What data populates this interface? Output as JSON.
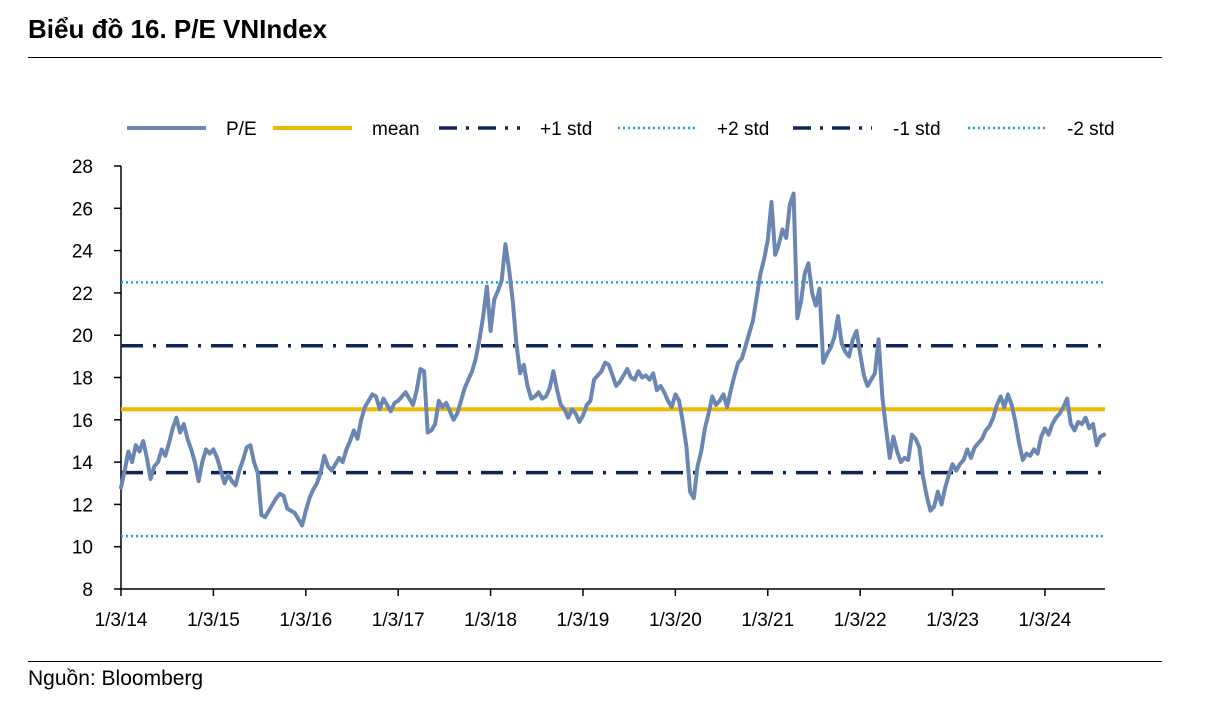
{
  "header": {
    "title": "Biểu đồ 16. P/E VNIndex"
  },
  "footer": {
    "source": "Nguồn: Bloomberg"
  },
  "chart_data": {
    "type": "line",
    "title": "Biểu đồ 16. P/E VNIndex",
    "xlabel": "",
    "ylabel": "",
    "ylim": [
      8,
      28
    ],
    "y_ticks": [
      8,
      10,
      12,
      14,
      16,
      18,
      20,
      22,
      24,
      26,
      28
    ],
    "x_ticks": [
      {
        "label": "1/3/14",
        "t": 0
      },
      {
        "label": "1/3/15",
        "t": 1
      },
      {
        "label": "1/3/16",
        "t": 2
      },
      {
        "label": "1/3/17",
        "t": 3
      },
      {
        "label": "1/3/18",
        "t": 4
      },
      {
        "label": "1/3/19",
        "t": 5
      },
      {
        "label": "1/3/20",
        "t": 6
      },
      {
        "label": "1/3/21",
        "t": 7
      },
      {
        "label": "1/3/22",
        "t": 8
      },
      {
        "label": "1/3/23",
        "t": 9
      },
      {
        "label": "1/3/24",
        "t": 10
      }
    ],
    "x_range": [
      0,
      10.65
    ],
    "legend_position": "top",
    "reference_lines": [
      {
        "name": "mean",
        "value": 16.5,
        "style": "solid",
        "color": "#F5B800"
      },
      {
        "name": "+1 std",
        "value": 19.5,
        "style": "dashdot",
        "color": "#0F2557"
      },
      {
        "name": "+2 std",
        "value": 22.5,
        "style": "dotted",
        "color": "#1BA1E2"
      },
      {
        "name": "-1 std",
        "value": 13.5,
        "style": "dashdot",
        "color": "#0F2557"
      },
      {
        "name": "-2 std",
        "value": 10.5,
        "style": "dotted",
        "color": "#1BA1E2"
      }
    ],
    "series": [
      {
        "name": "P/E",
        "color": "#6A86B2",
        "points": [
          [
            0.0,
            12.8
          ],
          [
            0.04,
            13.6
          ],
          [
            0.08,
            14.5
          ],
          [
            0.12,
            14.0
          ],
          [
            0.16,
            14.8
          ],
          [
            0.2,
            14.5
          ],
          [
            0.24,
            15.0
          ],
          [
            0.28,
            14.2
          ],
          [
            0.32,
            13.2
          ],
          [
            0.36,
            13.8
          ],
          [
            0.4,
            14.0
          ],
          [
            0.44,
            14.6
          ],
          [
            0.48,
            14.3
          ],
          [
            0.52,
            14.9
          ],
          [
            0.56,
            15.6
          ],
          [
            0.6,
            16.1
          ],
          [
            0.64,
            15.4
          ],
          [
            0.68,
            15.8
          ],
          [
            0.72,
            15.1
          ],
          [
            0.76,
            14.6
          ],
          [
            0.8,
            14.0
          ],
          [
            0.84,
            13.1
          ],
          [
            0.88,
            14.0
          ],
          [
            0.92,
            14.6
          ],
          [
            0.96,
            14.4
          ],
          [
            1.0,
            14.6
          ],
          [
            1.04,
            14.2
          ],
          [
            1.08,
            13.6
          ],
          [
            1.12,
            13.0
          ],
          [
            1.16,
            13.4
          ],
          [
            1.2,
            13.1
          ],
          [
            1.24,
            12.9
          ],
          [
            1.28,
            13.6
          ],
          [
            1.32,
            14.1
          ],
          [
            1.36,
            14.7
          ],
          [
            1.4,
            14.8
          ],
          [
            1.44,
            14.0
          ],
          [
            1.48,
            13.5
          ],
          [
            1.52,
            11.5
          ],
          [
            1.56,
            11.4
          ],
          [
            1.6,
            11.7
          ],
          [
            1.64,
            12.0
          ],
          [
            1.68,
            12.3
          ],
          [
            1.72,
            12.5
          ],
          [
            1.76,
            12.4
          ],
          [
            1.8,
            11.8
          ],
          [
            1.84,
            11.7
          ],
          [
            1.88,
            11.6
          ],
          [
            1.92,
            11.3
          ],
          [
            1.96,
            11.0
          ],
          [
            2.0,
            11.7
          ],
          [
            2.04,
            12.3
          ],
          [
            2.08,
            12.7
          ],
          [
            2.12,
            13.0
          ],
          [
            2.16,
            13.5
          ],
          [
            2.2,
            14.3
          ],
          [
            2.24,
            13.8
          ],
          [
            2.28,
            13.6
          ],
          [
            2.32,
            13.9
          ],
          [
            2.36,
            14.2
          ],
          [
            2.4,
            14.0
          ],
          [
            2.44,
            14.6
          ],
          [
            2.48,
            15.0
          ],
          [
            2.52,
            15.5
          ],
          [
            2.56,
            15.1
          ],
          [
            2.6,
            16.0
          ],
          [
            2.64,
            16.6
          ],
          [
            2.68,
            16.9
          ],
          [
            2.72,
            17.2
          ],
          [
            2.76,
            17.1
          ],
          [
            2.8,
            16.5
          ],
          [
            2.84,
            17.0
          ],
          [
            2.88,
            16.7
          ],
          [
            2.92,
            16.4
          ],
          [
            2.96,
            16.8
          ],
          [
            3.0,
            16.9
          ],
          [
            3.04,
            17.1
          ],
          [
            3.08,
            17.3
          ],
          [
            3.12,
            17.0
          ],
          [
            3.16,
            16.7
          ],
          [
            3.2,
            17.4
          ],
          [
            3.24,
            18.4
          ],
          [
            3.28,
            18.3
          ],
          [
            3.32,
            15.4
          ],
          [
            3.36,
            15.5
          ],
          [
            3.4,
            15.8
          ],
          [
            3.44,
            16.9
          ],
          [
            3.48,
            16.6
          ],
          [
            3.52,
            16.8
          ],
          [
            3.56,
            16.4
          ],
          [
            3.6,
            16.0
          ],
          [
            3.64,
            16.3
          ],
          [
            3.68,
            16.9
          ],
          [
            3.72,
            17.5
          ],
          [
            3.76,
            17.9
          ],
          [
            3.8,
            18.3
          ],
          [
            3.84,
            18.9
          ],
          [
            3.88,
            19.8
          ],
          [
            3.92,
            20.9
          ],
          [
            3.96,
            22.3
          ],
          [
            4.0,
            20.2
          ],
          [
            4.04,
            21.7
          ],
          [
            4.08,
            22.1
          ],
          [
            4.12,
            22.6
          ],
          [
            4.16,
            24.3
          ],
          [
            4.2,
            23.1
          ],
          [
            4.24,
            21.6
          ],
          [
            4.28,
            19.6
          ],
          [
            4.32,
            18.2
          ],
          [
            4.36,
            18.6
          ],
          [
            4.4,
            17.6
          ],
          [
            4.44,
            17.0
          ],
          [
            4.48,
            17.1
          ],
          [
            4.52,
            17.3
          ],
          [
            4.56,
            17.0
          ],
          [
            4.6,
            17.1
          ],
          [
            4.64,
            17.5
          ],
          [
            4.68,
            18.3
          ],
          [
            4.72,
            17.4
          ],
          [
            4.76,
            16.7
          ],
          [
            4.8,
            16.5
          ],
          [
            4.84,
            16.1
          ],
          [
            4.88,
            16.5
          ],
          [
            4.92,
            16.3
          ],
          [
            4.96,
            15.9
          ],
          [
            5.0,
            16.2
          ],
          [
            5.04,
            16.7
          ],
          [
            5.08,
            16.9
          ],
          [
            5.12,
            17.9
          ],
          [
            5.16,
            18.1
          ],
          [
            5.2,
            18.3
          ],
          [
            5.24,
            18.7
          ],
          [
            5.28,
            18.6
          ],
          [
            5.32,
            18.1
          ],
          [
            5.36,
            17.6
          ],
          [
            5.4,
            17.8
          ],
          [
            5.44,
            18.1
          ],
          [
            5.48,
            18.4
          ],
          [
            5.52,
            18.0
          ],
          [
            5.56,
            17.9
          ],
          [
            5.6,
            18.3
          ],
          [
            5.64,
            18.0
          ],
          [
            5.68,
            18.1
          ],
          [
            5.72,
            17.9
          ],
          [
            5.76,
            18.2
          ],
          [
            5.8,
            17.4
          ],
          [
            5.84,
            17.6
          ],
          [
            5.88,
            17.3
          ],
          [
            5.92,
            16.9
          ],
          [
            5.96,
            16.6
          ],
          [
            6.0,
            17.2
          ],
          [
            6.04,
            16.9
          ],
          [
            6.08,
            15.9
          ],
          [
            6.12,
            14.7
          ],
          [
            6.16,
            12.6
          ],
          [
            6.2,
            12.3
          ],
          [
            6.24,
            13.8
          ],
          [
            6.28,
            14.5
          ],
          [
            6.32,
            15.6
          ],
          [
            6.36,
            16.3
          ],
          [
            6.4,
            17.1
          ],
          [
            6.44,
            16.7
          ],
          [
            6.48,
            16.9
          ],
          [
            6.52,
            17.2
          ],
          [
            6.56,
            16.6
          ],
          [
            6.6,
            17.4
          ],
          [
            6.64,
            18.1
          ],
          [
            6.68,
            18.7
          ],
          [
            6.72,
            18.9
          ],
          [
            6.76,
            19.5
          ],
          [
            6.8,
            20.1
          ],
          [
            6.84,
            20.7
          ],
          [
            6.88,
            21.8
          ],
          [
            6.92,
            22.9
          ],
          [
            6.96,
            23.6
          ],
          [
            7.0,
            24.5
          ],
          [
            7.04,
            26.3
          ],
          [
            7.08,
            23.8
          ],
          [
            7.12,
            24.3
          ],
          [
            7.16,
            25.0
          ],
          [
            7.2,
            24.6
          ],
          [
            7.24,
            26.2
          ],
          [
            7.28,
            26.7
          ],
          [
            7.32,
            20.8
          ],
          [
            7.36,
            21.6
          ],
          [
            7.4,
            22.9
          ],
          [
            7.44,
            23.4
          ],
          [
            7.48,
            22.0
          ],
          [
            7.52,
            21.4
          ],
          [
            7.56,
            22.2
          ],
          [
            7.6,
            18.7
          ],
          [
            7.64,
            19.1
          ],
          [
            7.68,
            19.4
          ],
          [
            7.72,
            19.9
          ],
          [
            7.76,
            20.9
          ],
          [
            7.8,
            19.6
          ],
          [
            7.84,
            19.2
          ],
          [
            7.88,
            19.0
          ],
          [
            7.92,
            19.8
          ],
          [
            7.96,
            20.2
          ],
          [
            8.0,
            19.1
          ],
          [
            8.04,
            18.1
          ],
          [
            8.08,
            17.6
          ],
          [
            8.12,
            17.9
          ],
          [
            8.16,
            18.2
          ],
          [
            8.2,
            19.8
          ],
          [
            8.24,
            17.1
          ],
          [
            8.28,
            15.6
          ],
          [
            8.32,
            14.2
          ],
          [
            8.36,
            15.2
          ],
          [
            8.4,
            14.5
          ],
          [
            8.44,
            14.0
          ],
          [
            8.48,
            14.2
          ],
          [
            8.52,
            14.1
          ],
          [
            8.56,
            15.3
          ],
          [
            8.6,
            15.1
          ],
          [
            8.64,
            14.7
          ],
          [
            8.68,
            13.3
          ],
          [
            8.72,
            12.4
          ],
          [
            8.76,
            11.7
          ],
          [
            8.8,
            11.9
          ],
          [
            8.84,
            12.6
          ],
          [
            8.88,
            12.0
          ],
          [
            8.92,
            12.8
          ],
          [
            8.96,
            13.4
          ],
          [
            9.0,
            13.9
          ],
          [
            9.04,
            13.6
          ],
          [
            9.08,
            13.9
          ],
          [
            9.12,
            14.1
          ],
          [
            9.16,
            14.6
          ],
          [
            9.2,
            14.2
          ],
          [
            9.24,
            14.7
          ],
          [
            9.28,
            14.9
          ],
          [
            9.32,
            15.1
          ],
          [
            9.36,
            15.5
          ],
          [
            9.4,
            15.7
          ],
          [
            9.44,
            16.1
          ],
          [
            9.48,
            16.7
          ],
          [
            9.52,
            17.1
          ],
          [
            9.56,
            16.6
          ],
          [
            9.6,
            17.2
          ],
          [
            9.64,
            16.7
          ],
          [
            9.68,
            15.9
          ],
          [
            9.72,
            14.9
          ],
          [
            9.76,
            14.1
          ],
          [
            9.8,
            14.4
          ],
          [
            9.84,
            14.3
          ],
          [
            9.88,
            14.6
          ],
          [
            9.92,
            14.4
          ],
          [
            9.96,
            15.2
          ],
          [
            10.0,
            15.6
          ],
          [
            10.04,
            15.3
          ],
          [
            10.08,
            15.8
          ],
          [
            10.12,
            16.1
          ],
          [
            10.16,
            16.3
          ],
          [
            10.2,
            16.6
          ],
          [
            10.24,
            17.0
          ],
          [
            10.28,
            15.8
          ],
          [
            10.32,
            15.5
          ],
          [
            10.36,
            15.9
          ],
          [
            10.4,
            15.8
          ],
          [
            10.44,
            16.1
          ],
          [
            10.48,
            15.6
          ],
          [
            10.52,
            15.8
          ],
          [
            10.56,
            14.8
          ],
          [
            10.6,
            15.2
          ],
          [
            10.64,
            15.3
          ]
        ]
      }
    ]
  }
}
